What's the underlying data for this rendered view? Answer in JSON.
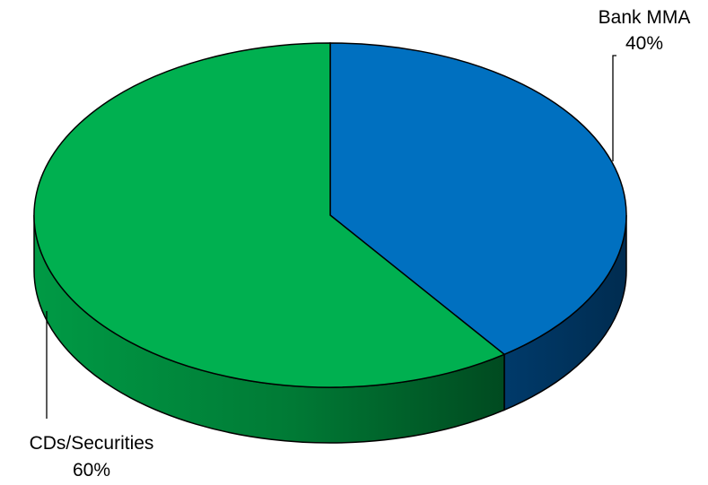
{
  "chart_data": {
    "type": "pie",
    "style": "3d",
    "slices": [
      {
        "name": "Bank MMA",
        "value": 40,
        "value_label": "40%",
        "color": "#0070C0"
      },
      {
        "name": "CDs/Securities",
        "value": 60,
        "value_label": "60%",
        "color": "#00B050"
      }
    ],
    "start": "12 o'clock",
    "direction": "clockwise",
    "legend": "none",
    "labels": "outside with leader lines"
  }
}
